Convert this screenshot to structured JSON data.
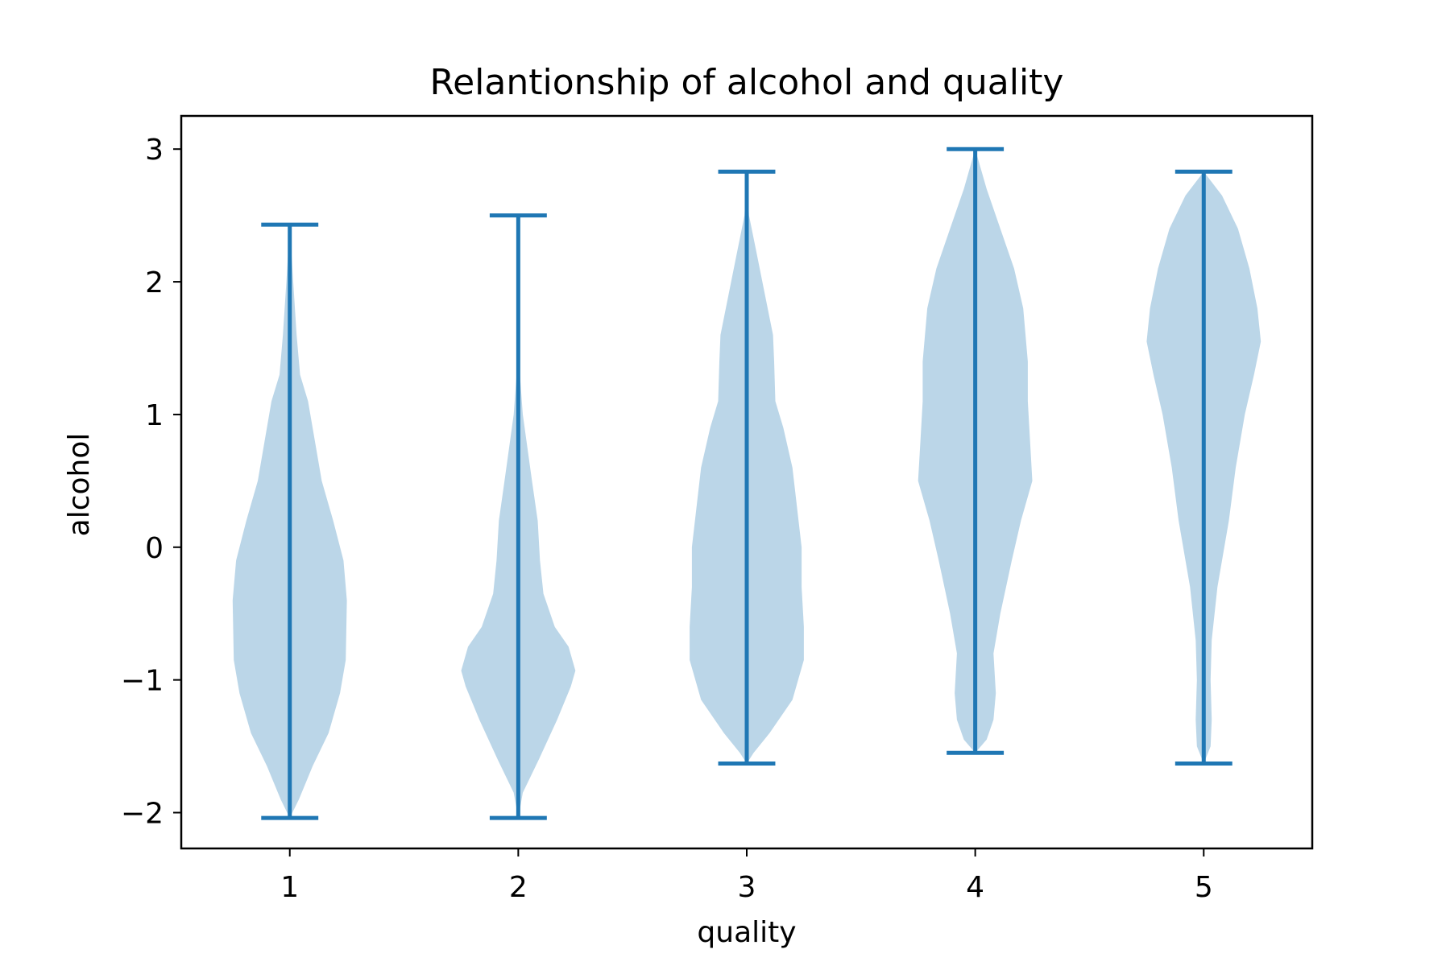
{
  "chart_data": {
    "type": "violin",
    "title": "Relantionship of alcohol and quality",
    "xlabel": "quality",
    "ylabel": "alcohol",
    "xlim": [
      0.525,
      5.475
    ],
    "ylim": [
      -2.27,
      3.25
    ],
    "xticks": [
      1,
      2,
      3,
      4,
      5
    ],
    "xtick_labels": [
      "1",
      "2",
      "3",
      "4",
      "5"
    ],
    "yticks": [
      -2,
      -1,
      0,
      1,
      2,
      3
    ],
    "ytick_labels": [
      "−2",
      "−1",
      "0",
      "1",
      "2",
      "3"
    ],
    "grid": false,
    "violin_width": 0.5,
    "series": [
      {
        "x": 1,
        "min": -2.04,
        "max": 2.43,
        "profile": [
          [
            -2.04,
            0.0
          ],
          [
            -1.9,
            0.04
          ],
          [
            -1.65,
            0.1
          ],
          [
            -1.4,
            0.17
          ],
          [
            -1.1,
            0.22
          ],
          [
            -0.85,
            0.245
          ],
          [
            -0.4,
            0.25
          ],
          [
            -0.1,
            0.235
          ],
          [
            0.2,
            0.19
          ],
          [
            0.5,
            0.14
          ],
          [
            0.8,
            0.11
          ],
          [
            1.1,
            0.08
          ],
          [
            1.3,
            0.045
          ],
          [
            1.6,
            0.03
          ],
          [
            2.0,
            0.015
          ],
          [
            2.43,
            0.0
          ]
        ]
      },
      {
        "x": 2,
        "min": -2.04,
        "max": 2.5,
        "profile": [
          [
            -2.04,
            0.0
          ],
          [
            -1.85,
            0.02
          ],
          [
            -1.6,
            0.09
          ],
          [
            -1.3,
            0.17
          ],
          [
            -1.05,
            0.23
          ],
          [
            -0.93,
            0.25
          ],
          [
            -0.75,
            0.22
          ],
          [
            -0.6,
            0.16
          ],
          [
            -0.35,
            0.11
          ],
          [
            -0.1,
            0.095
          ],
          [
            0.2,
            0.085
          ],
          [
            0.5,
            0.06
          ],
          [
            0.75,
            0.04
          ],
          [
            1.0,
            0.02
          ],
          [
            1.4,
            0.003
          ],
          [
            2.0,
            0.0
          ],
          [
            2.5,
            0.0
          ]
        ]
      },
      {
        "x": 3,
        "min": -1.63,
        "max": 2.83,
        "profile": [
          [
            -1.63,
            0.0
          ],
          [
            -1.55,
            0.03
          ],
          [
            -1.4,
            0.1
          ],
          [
            -1.15,
            0.2
          ],
          [
            -0.85,
            0.25
          ],
          [
            -0.6,
            0.25
          ],
          [
            -0.3,
            0.24
          ],
          [
            0.0,
            0.24
          ],
          [
            0.3,
            0.22
          ],
          [
            0.6,
            0.2
          ],
          [
            0.9,
            0.16
          ],
          [
            1.1,
            0.125
          ],
          [
            1.4,
            0.12
          ],
          [
            1.6,
            0.115
          ],
          [
            1.9,
            0.08
          ],
          [
            2.2,
            0.045
          ],
          [
            2.5,
            0.01
          ],
          [
            2.83,
            0.0
          ]
        ]
      },
      {
        "x": 4,
        "min": -1.55,
        "max": 3.0,
        "profile": [
          [
            -1.55,
            0.0
          ],
          [
            -1.45,
            0.05
          ],
          [
            -1.3,
            0.08
          ],
          [
            -1.1,
            0.09
          ],
          [
            -0.8,
            0.08
          ],
          [
            -0.5,
            0.11
          ],
          [
            -0.1,
            0.16
          ],
          [
            0.2,
            0.2
          ],
          [
            0.5,
            0.25
          ],
          [
            0.8,
            0.24
          ],
          [
            1.1,
            0.23
          ],
          [
            1.4,
            0.23
          ],
          [
            1.8,
            0.21
          ],
          [
            2.1,
            0.17
          ],
          [
            2.4,
            0.11
          ],
          [
            2.7,
            0.05
          ],
          [
            3.0,
            0.0
          ]
        ]
      },
      {
        "x": 5,
        "min": -1.63,
        "max": 2.83,
        "profile": [
          [
            -1.63,
            0.0
          ],
          [
            -1.5,
            0.03
          ],
          [
            -1.3,
            0.035
          ],
          [
            -1.0,
            0.03
          ],
          [
            -0.7,
            0.035
          ],
          [
            -0.3,
            0.06
          ],
          [
            0.2,
            0.11
          ],
          [
            0.6,
            0.14
          ],
          [
            1.0,
            0.18
          ],
          [
            1.3,
            0.22
          ],
          [
            1.55,
            0.25
          ],
          [
            1.8,
            0.235
          ],
          [
            2.1,
            0.2
          ],
          [
            2.4,
            0.15
          ],
          [
            2.65,
            0.08
          ],
          [
            2.83,
            0.0
          ]
        ]
      }
    ],
    "colors": {
      "body": "#1f77b4",
      "body_opacity": 0.3,
      "lines": "#1f77b4"
    }
  }
}
